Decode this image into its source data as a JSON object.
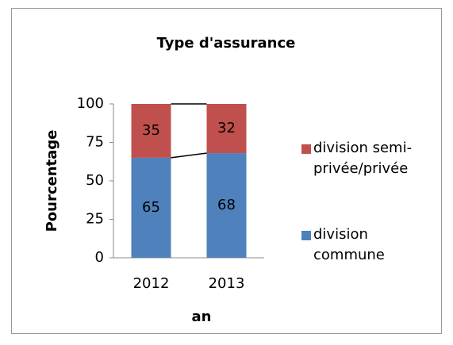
{
  "chart_data": {
    "type": "stacked_bar",
    "title": "Type d'assurance",
    "x_label": "an",
    "y_label": "Pourcentage",
    "categories": [
      "2012",
      "2013"
    ],
    "series": [
      {
        "name": "division commune",
        "color": "#4f81bd",
        "values": [
          65,
          68
        ]
      },
      {
        "name": "division semi-privée/privée",
        "color": "#c0504d",
        "values": [
          35,
          32
        ]
      }
    ],
    "ylim": [
      0,
      100
    ],
    "yticks": [
      0,
      25,
      50,
      75,
      100
    ],
    "series_lines": true,
    "legend": "right"
  }
}
